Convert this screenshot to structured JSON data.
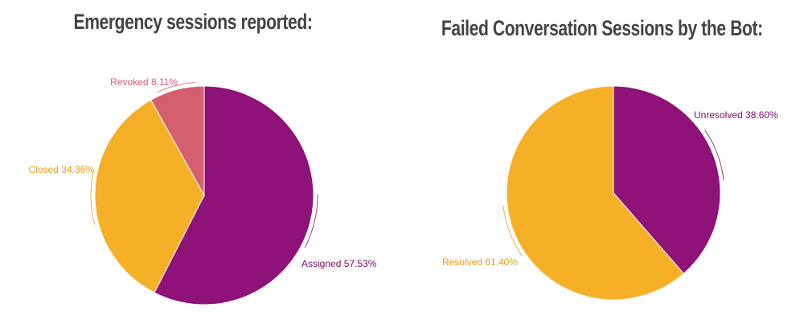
{
  "chart_data": [
    {
      "type": "pie",
      "title": "Emergency sessions reported:",
      "slices": [
        {
          "label": "Assigned",
          "value": 57.53,
          "display": "Assigned 57.53%",
          "color": "#8e1278"
        },
        {
          "label": "Closed",
          "value": 34.36,
          "display": "Closed 34.36%",
          "color": "#f5b027"
        },
        {
          "label": "Revoked",
          "value": 8.11,
          "display": "Revoked 8.11%",
          "color": "#d45f6e"
        }
      ],
      "label_colors": [
        "#7a0f67",
        "#e89a1c",
        "#d45f6e"
      ],
      "start_angle_deg": 0,
      "direction": "clockwise",
      "legend": "none (labels beside slices)"
    },
    {
      "type": "pie",
      "title": "Failed Conversation Sessions by the Bot:",
      "slices": [
        {
          "label": "Unresolved",
          "value": 38.6,
          "display": "Unresolved 38.60%",
          "color": "#8e1278"
        },
        {
          "label": "Resolved",
          "value": 61.4,
          "display": "Resolved 61.40%",
          "color": "#f5b027"
        }
      ],
      "label_colors": [
        "#7a0f67",
        "#e89a1c"
      ],
      "start_angle_deg": 0,
      "direction": "clockwise",
      "legend": "none (labels beside slices)"
    }
  ]
}
